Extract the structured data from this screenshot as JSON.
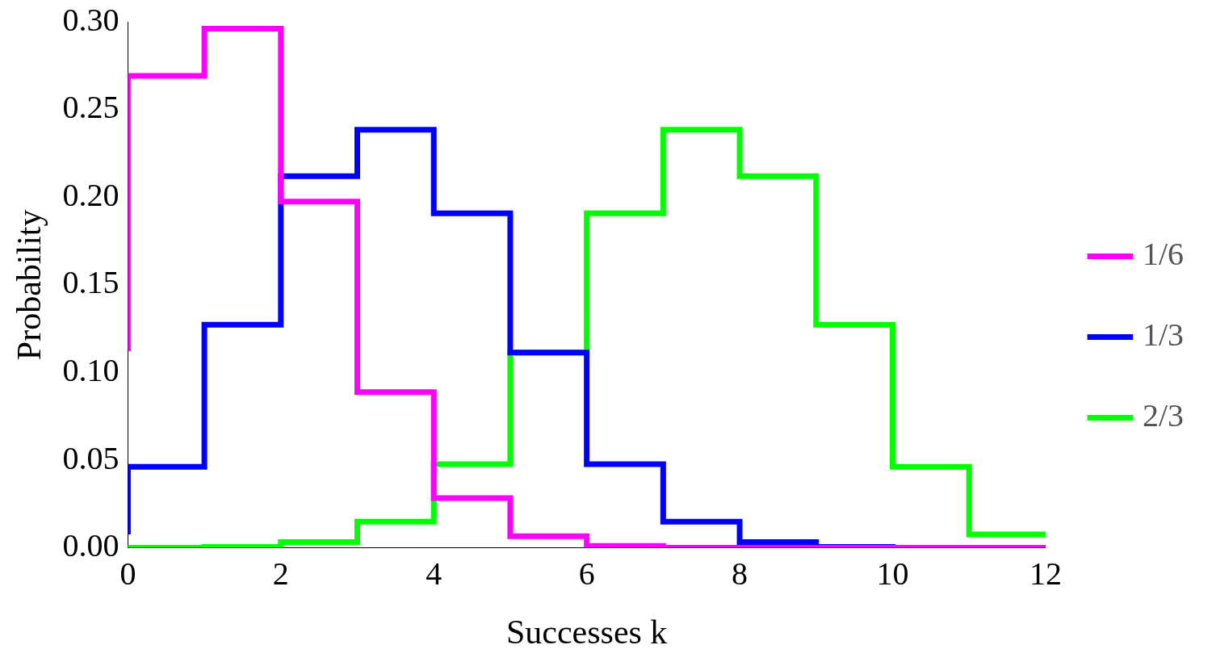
{
  "chart_data": {
    "type": "line",
    "line_style": "step",
    "x_label": "Successes k",
    "y_label": "Probability",
    "x": [
      0,
      1,
      2,
      3,
      4,
      5,
      6,
      7,
      8,
      9,
      10,
      11,
      12
    ],
    "series": [
      {
        "name": "1/6",
        "color": "#ff00ff",
        "values": [
          0.1122,
          0.2692,
          0.2961,
          0.1974,
          0.0888,
          0.0284,
          0.0066,
          0.0011,
          0.0001,
          0,
          0,
          0,
          0
        ]
      },
      {
        "name": "1/3",
        "color": "#0000ff",
        "values": [
          0.0077,
          0.0462,
          0.1272,
          0.2119,
          0.2384,
          0.1908,
          0.1113,
          0.0477,
          0.0149,
          0.0033,
          0.0005,
          0.0001,
          0
        ]
      },
      {
        "name": "2/3",
        "color": "#00ff00",
        "values": [
          0,
          0.0001,
          0.0005,
          0.0033,
          0.0149,
          0.0477,
          0.1113,
          0.1908,
          0.2384,
          0.2119,
          0.1272,
          0.0462,
          0.0077
        ]
      }
    ],
    "xlim": [
      0,
      12
    ],
    "xticks": [
      0,
      2,
      4,
      6,
      8,
      10,
      12
    ],
    "ylim": [
      0,
      0.3
    ],
    "yticks": [
      {
        "value": 0,
        "label": "0.00"
      },
      {
        "value": 0.05,
        "label": "0.05"
      },
      {
        "value": 0.1,
        "label": "0.10"
      },
      {
        "value": 0.15,
        "label": "0.15"
      },
      {
        "value": 0.2,
        "label": "0.20"
      },
      {
        "value": 0.25,
        "label": "0.25"
      },
      {
        "value": 0.3,
        "label": "0.30"
      }
    ],
    "grid": false,
    "legend": "right"
  }
}
